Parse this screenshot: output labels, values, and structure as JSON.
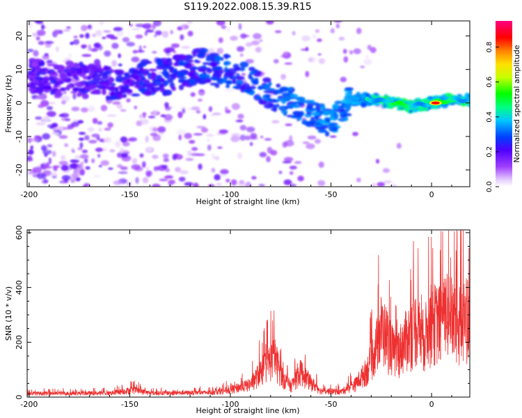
{
  "title": "S119.2022.008.15.39.R15",
  "chart_data": [
    {
      "type": "heatmap",
      "title": "",
      "xlabel": "Height of straight line (km)",
      "ylabel": "Frequency (Hz)",
      "xlim": [
        -201,
        19
      ],
      "ylim": [
        -25,
        24.5
      ],
      "xticks": [
        -200,
        -150,
        -100,
        -50,
        0
      ],
      "yticks": [
        -20,
        -10,
        0,
        10,
        20
      ],
      "colorbar": {
        "label": "Normalized spectral amplitude",
        "range": [
          0,
          0.95
        ],
        "ticks": [
          "0.0",
          "0.2",
          "0.4",
          "0.6",
          "0.8"
        ],
        "colormap": "rainbow (white at 0, violet, blue, cyan, green, yellow, red, magenta at max)"
      },
      "ridge": [
        {
          "x": -200,
          "y": 8
        },
        {
          "x": -180,
          "y": 7
        },
        {
          "x": -160,
          "y": 6
        },
        {
          "x": -150,
          "y": 7
        },
        {
          "x": -130,
          "y": 8
        },
        {
          "x": -115,
          "y": 11
        },
        {
          "x": -100,
          "y": 9
        },
        {
          "x": -90,
          "y": 7
        },
        {
          "x": -80,
          "y": 2
        },
        {
          "x": -70,
          "y": 0
        },
        {
          "x": -60,
          "y": -3
        },
        {
          "x": -50,
          "y": -6
        },
        {
          "x": -40,
          "y": 1
        },
        {
          "x": -30,
          "y": 1
        },
        {
          "x": -20,
          "y": 0
        },
        {
          "x": -10,
          "y": -1
        },
        {
          "x": 0,
          "y": 0
        },
        {
          "x": 10,
          "y": 1
        },
        {
          "x": 18,
          "y": 1
        }
      ],
      "peak": {
        "x": 2,
        "y": 0,
        "value": 0.95
      }
    },
    {
      "type": "line",
      "title": "",
      "xlabel": "Height of straight line (km)",
      "ylabel": "SNR (10 * v/v)",
      "xlim": [
        -201,
        19
      ],
      "ylim": [
        0,
        610
      ],
      "xticks": [
        -200,
        -150,
        -100,
        -50,
        0
      ],
      "yticks": [
        0,
        200,
        400,
        600
      ],
      "series": [
        {
          "color": "#ee3030",
          "envelope": [
            {
              "x": -200,
              "y": 20
            },
            {
              "x": -160,
              "y": 22
            },
            {
              "x": -148,
              "y": 40
            },
            {
              "x": -140,
              "y": 22
            },
            {
              "x": -110,
              "y": 25
            },
            {
              "x": -100,
              "y": 40
            },
            {
              "x": -90,
              "y": 70
            },
            {
              "x": -82,
              "y": 180
            },
            {
              "x": -78,
              "y": 220
            },
            {
              "x": -74,
              "y": 110
            },
            {
              "x": -70,
              "y": 60
            },
            {
              "x": -65,
              "y": 140
            },
            {
              "x": -60,
              "y": 80
            },
            {
              "x": -55,
              "y": 35
            },
            {
              "x": -45,
              "y": 30
            },
            {
              "x": -38,
              "y": 70
            },
            {
              "x": -32,
              "y": 150
            },
            {
              "x": -28,
              "y": 260
            },
            {
              "x": -25,
              "y": 380
            },
            {
              "x": -22,
              "y": 330
            },
            {
              "x": -18,
              "y": 230
            },
            {
              "x": -12,
              "y": 330
            },
            {
              "x": -8,
              "y": 390
            },
            {
              "x": -4,
              "y": 320
            },
            {
              "x": 0,
              "y": 420
            },
            {
              "x": 5,
              "y": 410
            },
            {
              "x": 8,
              "y": 480
            },
            {
              "x": 12,
              "y": 400
            },
            {
              "x": 16,
              "y": 430
            },
            {
              "x": 19,
              "y": 460
            }
          ]
        }
      ]
    }
  ]
}
